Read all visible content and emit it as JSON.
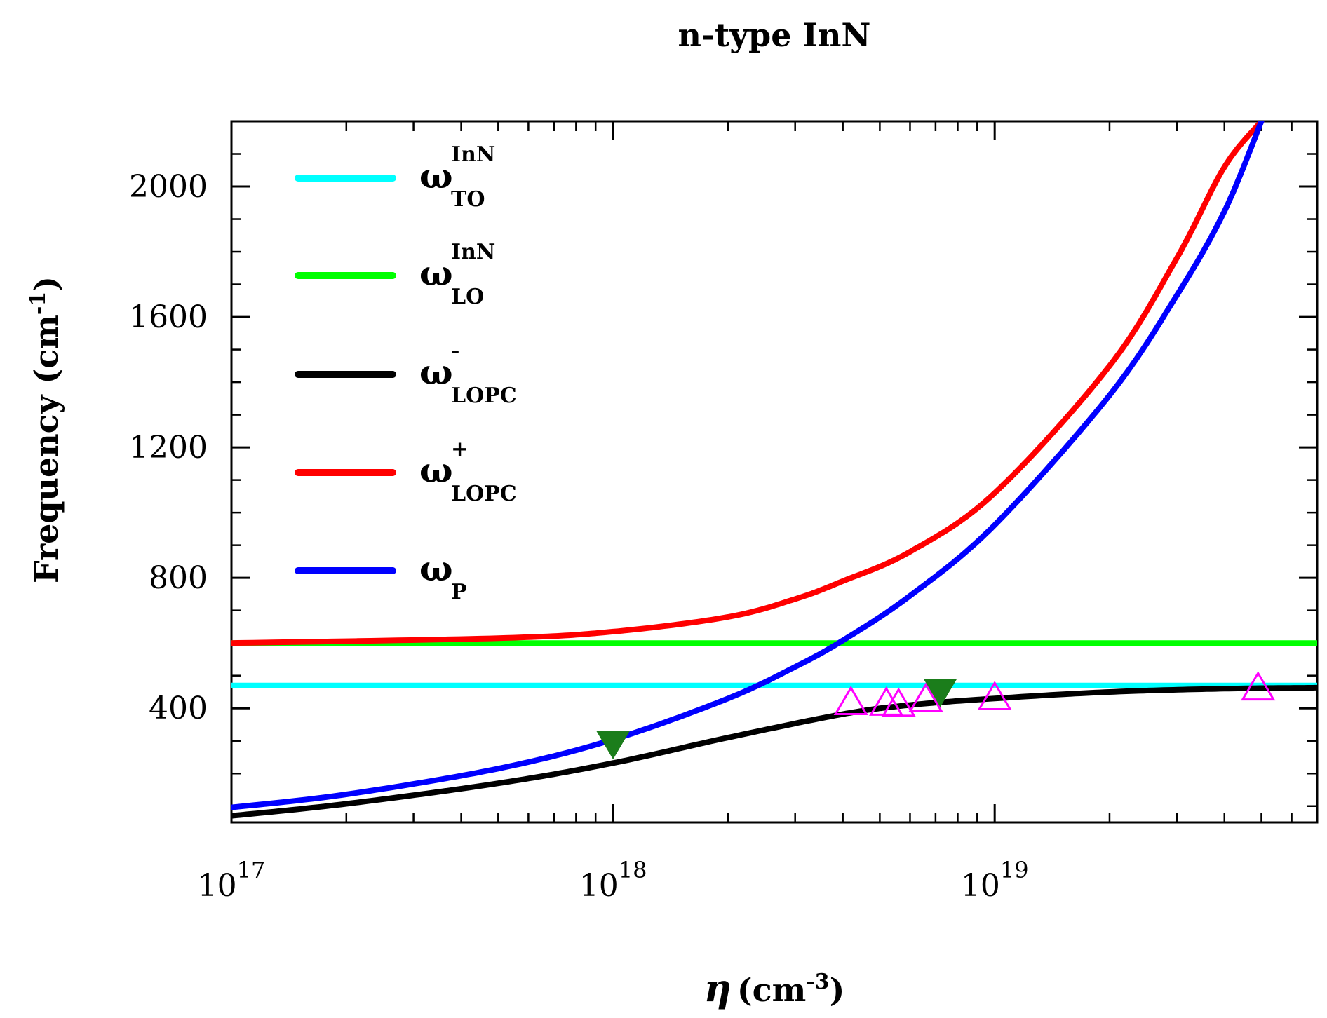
{
  "chart_data": {
    "type": "line",
    "title": "n-type InN",
    "xscale": "log",
    "xlim": [
      1e+17,
      7e+19
    ],
    "ylim": [
      50,
      2200
    ],
    "xlabel": {
      "symbol": "η",
      "unit": "(cm",
      "exp": "-3",
      "close": ")"
    },
    "ylabel": {
      "text": "Frequency (cm",
      "exp": "-1",
      "close": ")"
    },
    "x_tick_labels": [
      {
        "base": "10",
        "exp": "17",
        "value": 1e+17
      },
      {
        "base": "10",
        "exp": "18",
        "value": 1e+18
      },
      {
        "base": "10",
        "exp": "19",
        "value": 1e+19
      }
    ],
    "y_ticks": [
      400,
      800,
      1200,
      1600,
      2000
    ],
    "y_tick_labels": [
      "400",
      "800",
      "1200",
      "1600",
      "2000"
    ],
    "y_minor_step": 100,
    "series": [
      {
        "key": "to",
        "name": "ω",
        "sup": "InN",
        "sub": "TO",
        "color": "#00ffff",
        "x": [
          1e+17,
          7e+19
        ],
        "y": [
          470,
          470
        ]
      },
      {
        "key": "lo",
        "name": "ω",
        "sup": "InN",
        "sub": "LO",
        "color": "#00ff00",
        "x": [
          1e+17,
          7e+19
        ],
        "y": [
          600,
          600
        ]
      },
      {
        "key": "minus",
        "name": "ω",
        "sup": "-",
        "sub": "LOPC",
        "color": "#000000",
        "x": [
          1e+17,
          2e+17,
          5e+17,
          1e+18,
          2e+18,
          4e+18,
          6e+18,
          1e+19,
          2e+19,
          4e+19,
          7e+19
        ],
        "y": [
          70,
          107,
          170,
          232,
          310,
          382,
          410,
          430,
          450,
          460,
          463
        ]
      },
      {
        "key": "plus",
        "name": "ω",
        "sup": "+",
        "sub": "LOPC",
        "color": "#ff0000",
        "x": [
          1e+17,
          5e+17,
          1e+18,
          2e+18,
          3e+18,
          4e+18,
          6e+18,
          1e+19,
          2e+19,
          3e+19,
          4e+19,
          5e+19
        ],
        "y": [
          600,
          615,
          635,
          680,
          735,
          790,
          880,
          1060,
          1450,
          1780,
          2060,
          2200
        ]
      },
      {
        "key": "plasma",
        "name": "ω",
        "sup": "",
        "sub": "P",
        "color": "#0000ff",
        "x": [
          1e+17,
          2e+17,
          5e+17,
          1e+18,
          2e+18,
          3e+18,
          4e+18,
          6e+18,
          1e+19,
          2e+19,
          3e+19,
          4e+19,
          5e+19
        ],
        "y": [
          96,
          136,
          215,
          304,
          430,
          527,
          608,
          745,
          962,
          1360,
          1666,
          1924,
          2200
        ]
      }
    ],
    "markers": [
      {
        "shape": "triangle-down",
        "color": "#1b7d1b",
        "filled": true,
        "points": [
          {
            "x": 1e+18,
            "y": 290
          },
          {
            "x": 7.2e+18,
            "y": 450
          }
        ]
      },
      {
        "shape": "triangle-up",
        "color": "#ff00ff",
        "filled": false,
        "points": [
          {
            "x": 4.2e+18,
            "y": 420
          },
          {
            "x": 5.2e+18,
            "y": 418
          },
          {
            "x": 5.6e+18,
            "y": 415
          },
          {
            "x": 6.6e+18,
            "y": 430
          },
          {
            "x": 1e+19,
            "y": 435
          },
          {
            "x": 4.9e+19,
            "y": 465
          }
        ]
      }
    ],
    "legend_position": "upper-left"
  }
}
